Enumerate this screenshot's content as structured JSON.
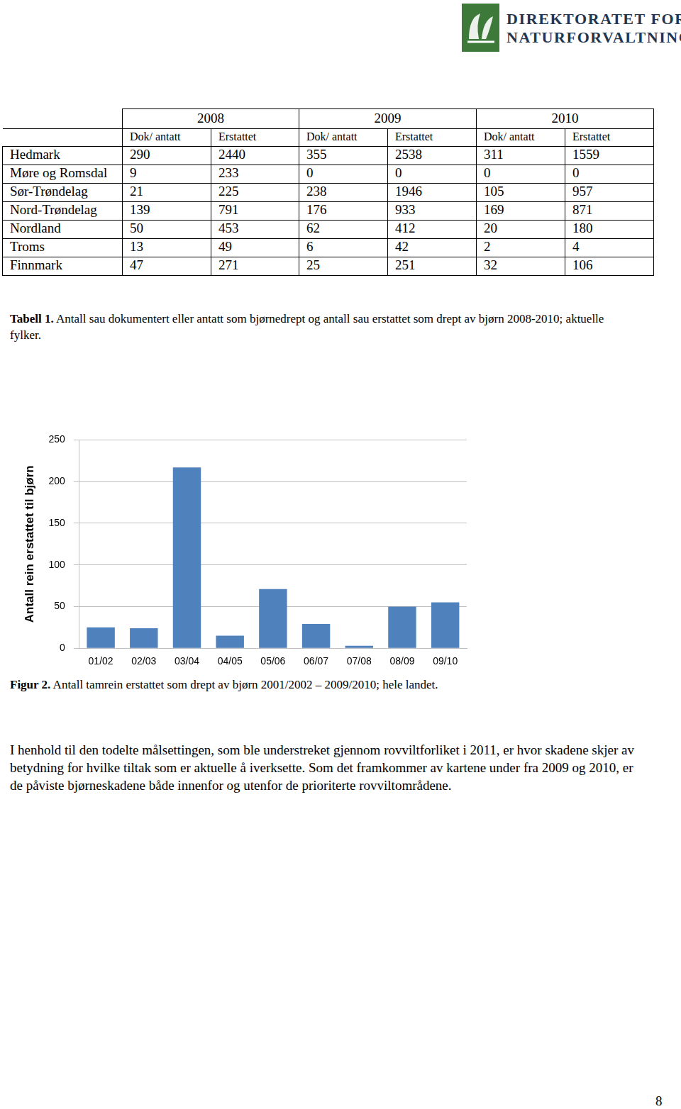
{
  "logo": {
    "lines": [
      "DIREKTORATET FOR",
      "NATURFORVALTNING"
    ]
  },
  "table": {
    "years": [
      "2008",
      "2009",
      "2010"
    ],
    "subheaders": [
      "Dok/ antatt",
      "Erstattet",
      "Dok/ antatt",
      "Erstattet",
      "Dok/ antatt",
      "Erstattet"
    ],
    "rows": [
      [
        "Hedmark",
        290,
        2440,
        355,
        2538,
        311,
        1559
      ],
      [
        "Møre og Romsdal",
        9,
        233,
        0,
        0,
        0,
        0
      ],
      [
        "Sør-Trøndelag",
        21,
        225,
        238,
        1946,
        105,
        957
      ],
      [
        "Nord-Trøndelag",
        139,
        791,
        176,
        933,
        169,
        871
      ],
      [
        "Nordland",
        50,
        453,
        62,
        412,
        20,
        180
      ],
      [
        "Troms",
        13,
        49,
        6,
        42,
        2,
        4
      ],
      [
        "Finnmark",
        47,
        271,
        25,
        251,
        32,
        106
      ]
    ]
  },
  "table_caption": {
    "label": "Tabell 1.",
    "text": "Antall sau dokumentert eller antatt som bjørnedrept og antall sau erstattet som drept av bjørn 2008-2010; aktuelle fylker."
  },
  "chart_data": {
    "type": "bar",
    "ylabel": "Antall rein erstattet til bjørn",
    "categories": [
      "01/02",
      "02/03",
      "03/04",
      "04/05",
      "05/06",
      "06/07",
      "07/08",
      "08/09",
      "09/10"
    ],
    "values": [
      25,
      24,
      217,
      15,
      71,
      29,
      3,
      50,
      55
    ],
    "color": "#4f81bd",
    "ylim": [
      0,
      250
    ],
    "yticks": [
      0,
      50,
      100,
      150,
      200,
      250
    ],
    "grid": true
  },
  "figure_caption": {
    "label": "Figur 2.",
    "text": "Antall tamrein erstattet som drept av bjørn 2001/2002 – 2009/2010; hele landet."
  },
  "paragraph": "I henhold til den todelte målsettingen, som ble understreket gjennom rovviltforliket i 2011, er hvor skadene skjer av betydning for hvilke tiltak som er aktuelle å iverksette. Som det framkommer av kartene under fra 2009 og 2010, er de påviste bjørneskadene både innenfor og utenfor de prioriterte rovviltområdene.",
  "page_number": "8"
}
